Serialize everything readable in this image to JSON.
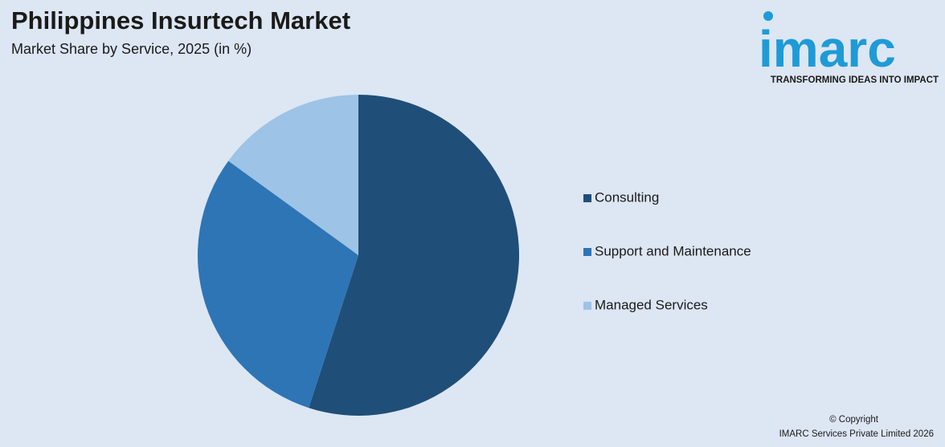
{
  "chart_data": {
    "type": "pie",
    "title": "Philippines Insurtech Market",
    "subtitle": "Market Share by Service, 2025 (in %)",
    "categories": [
      "Consulting",
      "Support and Maintenance",
      "Managed Services"
    ],
    "values": [
      55,
      30,
      15
    ],
    "colors": [
      "#1f4e79",
      "#2e75b6",
      "#9dc3e6"
    ],
    "legend": "right"
  },
  "branding": {
    "logo": "imarc",
    "tagline": "TRANSFORMING IDEAS INTO IMPACT"
  },
  "footer": {
    "copyright": "© Copyright",
    "owner": "IMARC Services Private Limited 2026"
  }
}
